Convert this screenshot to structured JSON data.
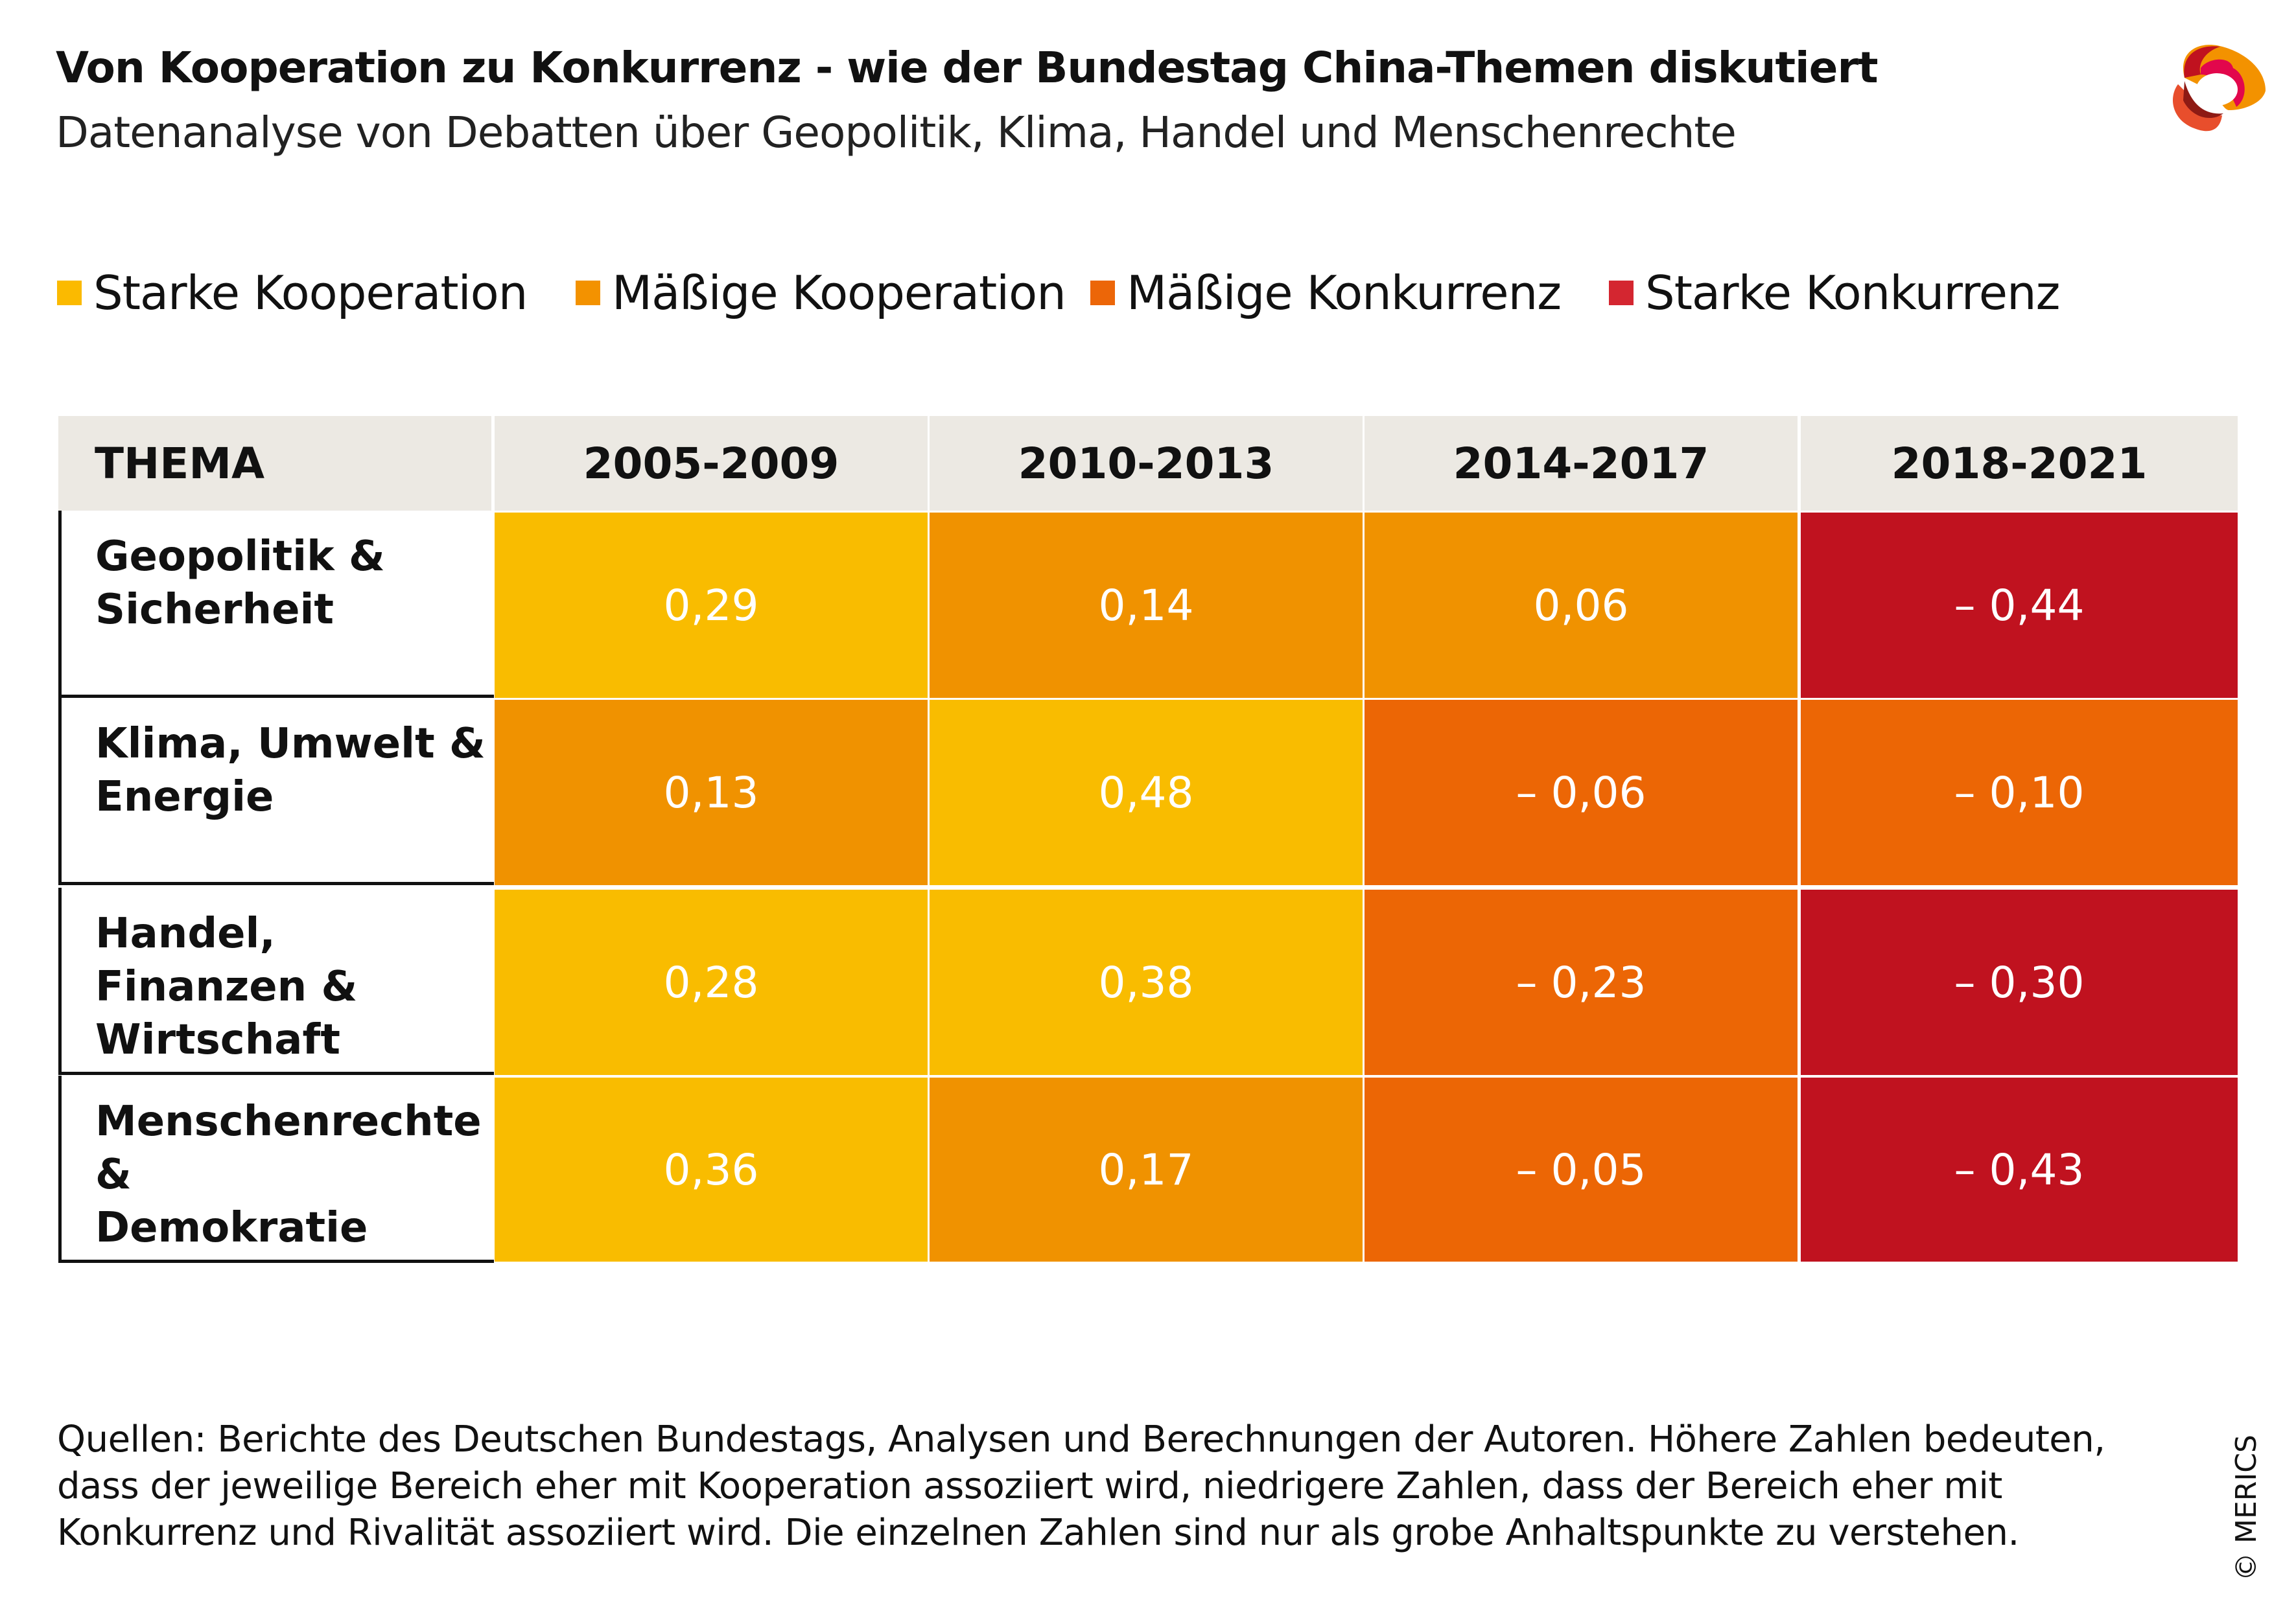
{
  "title": "Von Kooperation zu Konkurrenz - wie der Bundestag China-Themen diskutiert",
  "subtitle": "Datenanalyse von Debatten über Geopolitik, Klima, Handel und Menschenrechte",
  "legend": [
    {
      "label": "Starke Kooperation",
      "color": "#FBBA00"
    },
    {
      "label": "Mäßige Kooperation",
      "color": "#F39200"
    },
    {
      "label": "Mäßige Konkurrenz",
      "color": "#EC6608"
    },
    {
      "label": "Starke Konkurrenz",
      "color": "#D42630"
    }
  ],
  "chart_data": {
    "type": "heatmap",
    "title": "Von Kooperation zu Konkurrenz - wie der Bundestag China-Themen diskutiert",
    "subtitle": "Datenanalyse von Debatten über Geopolitik, Klima, Handel und Menschenrechte",
    "header_label": "THEMA",
    "columns": [
      "2005-2009",
      "2010-2013",
      "2014-2017",
      "2018-2021"
    ],
    "rows": [
      {
        "label_lines": [
          "Geopolitik &",
          "Sicherheit"
        ],
        "values": [
          0.29,
          0.14,
          0.06,
          -0.44
        ],
        "display": [
          "0,29",
          "0,14",
          "0,06",
          "– 0,44"
        ],
        "categories": [
          0,
          1,
          1,
          3
        ]
      },
      {
        "label_lines": [
          "Klima, Umwelt &",
          "Energie"
        ],
        "values": [
          0.13,
          0.48,
          -0.06,
          -0.1
        ],
        "display": [
          "0,13",
          "0,48",
          "– 0,06",
          "– 0,10"
        ],
        "categories": [
          1,
          0,
          2,
          2
        ]
      },
      {
        "label_lines": [
          "Handel, Finanzen &",
          "Wirtschaft"
        ],
        "values": [
          0.28,
          0.38,
          -0.23,
          -0.3
        ],
        "display": [
          "0,28",
          "0,38",
          "– 0,23",
          "– 0,30"
        ],
        "categories": [
          0,
          0,
          2,
          3
        ]
      },
      {
        "label_lines": [
          "Menschenrechte &",
          "Demokratie"
        ],
        "values": [
          0.36,
          0.17,
          -0.05,
          -0.43
        ],
        "display": [
          "0,36",
          "0,17",
          "– 0,05",
          "– 0,43"
        ],
        "categories": [
          0,
          1,
          2,
          3
        ]
      }
    ],
    "cell_colors": [
      "#F9BC00",
      "#F09200",
      "#EC6605",
      "#C0121F"
    ]
  },
  "footer": [
    "Quellen: Berichte des Deutschen Bundestags, Analysen und Berechnungen der Autoren. Höhere Zahlen bedeuten,",
    "dass der jeweilige Bereich eher mit Kooperation assoziiert wird, niedrigere Zahlen, dass der Bereich eher mit",
    "Konkurrenz und Rivalität assoziiert wird. Die einzelnen Zahlen sind nur als grobe Anhaltspunkte zu verstehen."
  ],
  "copyright": "© MERICS",
  "logo": "MERICS"
}
